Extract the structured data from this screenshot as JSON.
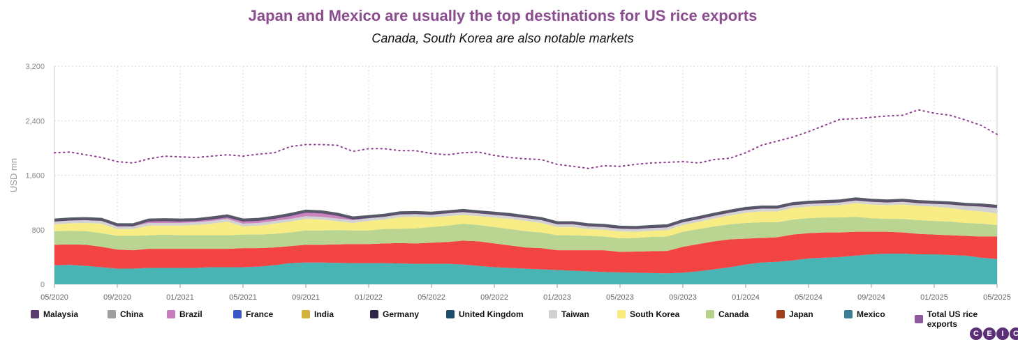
{
  "title": "Japan and Mexico are usually the top destinations for US rice exports",
  "subtitle": "Canada, South Korea are also notable markets",
  "logo": [
    "C",
    "E",
    "I",
    "C"
  ],
  "chart_data": {
    "type": "area",
    "stacked": true,
    "ylabel": "USD mn",
    "ylim": [
      0,
      3200
    ],
    "yticks": [
      0,
      800,
      1600,
      2400,
      3200
    ],
    "ytick_labels": [
      "0",
      "800",
      "1,600",
      "2,400",
      "3,200"
    ],
    "grid": true,
    "x": [
      "05/2020",
      "06/2020",
      "07/2020",
      "08/2020",
      "09/2020",
      "10/2020",
      "11/2020",
      "12/2020",
      "01/2021",
      "02/2021",
      "03/2021",
      "04/2021",
      "05/2021",
      "06/2021",
      "07/2021",
      "08/2021",
      "09/2021",
      "10/2021",
      "11/2021",
      "12/2021",
      "01/2022",
      "02/2022",
      "03/2022",
      "04/2022",
      "05/2022",
      "06/2022",
      "07/2022",
      "08/2022",
      "09/2022",
      "10/2022",
      "11/2022",
      "12/2022",
      "01/2023",
      "02/2023",
      "03/2023",
      "04/2023",
      "05/2023",
      "06/2023",
      "07/2023",
      "08/2023",
      "09/2023",
      "10/2023",
      "11/2023",
      "12/2023",
      "01/2024",
      "02/2024",
      "03/2024",
      "04/2024",
      "05/2024",
      "06/2024",
      "07/2024",
      "08/2024",
      "09/2024",
      "10/2024",
      "11/2024",
      "12/2024",
      "01/2025",
      "02/2025",
      "03/2025",
      "04/2025",
      "05/2025"
    ],
    "xtick_labels": [
      "05/2020",
      "09/2020",
      "01/2021",
      "05/2021",
      "09/2021",
      "01/2022",
      "05/2022",
      "09/2022",
      "01/2023",
      "05/2023",
      "09/2023",
      "01/2024",
      "05/2024",
      "09/2024",
      "01/2025",
      "05/2025"
    ],
    "legend_position": "bottom",
    "series": [
      {
        "name": "Mexico",
        "color": "#3fb0b0",
        "values": [
          280,
          285,
          270,
          250,
          230,
          230,
          240,
          240,
          240,
          240,
          250,
          250,
          250,
          260,
          280,
          310,
          320,
          320,
          315,
          310,
          310,
          310,
          305,
          300,
          300,
          300,
          290,
          270,
          250,
          240,
          230,
          220,
          210,
          200,
          190,
          180,
          175,
          170,
          165,
          160,
          170,
          190,
          220,
          250,
          290,
          320,
          330,
          350,
          380,
          390,
          400,
          420,
          440,
          450,
          450,
          440,
          440,
          430,
          420,
          390,
          370
        ]
      },
      {
        "name": "Japan",
        "color": "#f23a3a",
        "values": [
          300,
          300,
          310,
          300,
          280,
          270,
          280,
          280,
          280,
          280,
          270,
          270,
          280,
          270,
          260,
          250,
          260,
          260,
          270,
          280,
          280,
          290,
          300,
          300,
          310,
          320,
          350,
          360,
          350,
          330,
          310,
          310,
          290,
          300,
          310,
          320,
          300,
          310,
          320,
          330,
          380,
          400,
          410,
          410,
          380,
          360,
          360,
          380,
          370,
          370,
          360,
          350,
          330,
          320,
          310,
          300,
          290,
          290,
          290,
          310,
          330
        ]
      },
      {
        "name": "Canada",
        "color": "#b5d38b",
        "values": [
          200,
          200,
          200,
          200,
          200,
          210,
          200,
          210,
          200,
          200,
          200,
          200,
          200,
          200,
          200,
          200,
          210,
          210,
          210,
          200,
          200,
          210,
          210,
          220,
          230,
          240,
          250,
          240,
          240,
          240,
          240,
          230,
          220,
          220,
          210,
          200,
          200,
          200,
          210,
          210,
          220,
          220,
          220,
          220,
          230,
          230,
          220,
          220,
          220,
          220,
          220,
          220,
          200,
          190,
          200,
          200,
          200,
          200,
          190,
          190,
          170
        ]
      },
      {
        "name": "South Korea",
        "color": "#f7ec7d",
        "values": [
          100,
          110,
          120,
          140,
          100,
          100,
          140,
          130,
          140,
          150,
          170,
          200,
          120,
          130,
          150,
          160,
          170,
          160,
          130,
          110,
          140,
          140,
          170,
          170,
          140,
          140,
          130,
          130,
          140,
          150,
          150,
          140,
          120,
          120,
          100,
          100,
          100,
          90,
          90,
          95,
          100,
          105,
          115,
          130,
          150,
          160,
          160,
          170,
          170,
          170,
          180,
          200,
          200,
          200,
          210,
          210,
          210,
          200,
          190,
          180,
          170
        ]
      },
      {
        "name": "Taiwan",
        "color": "#d0d0d0",
        "values": [
          40,
          40,
          40,
          40,
          40,
          40,
          40,
          40,
          40,
          40,
          40,
          40,
          40,
          40,
          40,
          40,
          40,
          40,
          40,
          40,
          40,
          40,
          40,
          40,
          40,
          40,
          40,
          40,
          40,
          40,
          40,
          40,
          40,
          40,
          40,
          40,
          40,
          40,
          40,
          40,
          40,
          40,
          40,
          40,
          40,
          40,
          40,
          40,
          40,
          40,
          40,
          40,
          40,
          40,
          40,
          40,
          40,
          50,
          60,
          70,
          80
        ]
      },
      {
        "name": "Brazil",
        "color": "#c77dbd",
        "values": [
          0,
          0,
          0,
          0,
          0,
          0,
          20,
          25,
          20,
          15,
          20,
          20,
          30,
          30,
          30,
          40,
          50,
          50,
          40,
          10,
          0,
          0,
          0,
          0,
          0,
          0,
          0,
          0,
          0,
          0,
          0,
          0,
          0,
          0,
          0,
          0,
          0,
          0,
          0,
          0,
          0,
          0,
          0,
          0,
          0,
          0,
          0,
          0,
          0,
          0,
          0,
          0,
          0,
          0,
          0,
          0,
          0,
          0,
          0,
          0,
          0
        ]
      },
      {
        "name": "Malaysia",
        "color": "#5a3d6e",
        "values": [
          20,
          20,
          20,
          20,
          20,
          20,
          20,
          20,
          20,
          20,
          20,
          20,
          20,
          20,
          20,
          20,
          20,
          20,
          20,
          20,
          20,
          20,
          20,
          20,
          20,
          20,
          20,
          20,
          20,
          20,
          20,
          20,
          20,
          20,
          20,
          20,
          20,
          20,
          20,
          20,
          20,
          20,
          20,
          20,
          20,
          20,
          20,
          20,
          20,
          20,
          20,
          20,
          20,
          20,
          20,
          20,
          20,
          20,
          20,
          20,
          20
        ]
      },
      {
        "name": "China",
        "color": "#9e9e9e",
        "values": [
          10,
          10,
          10,
          10,
          10,
          10,
          10,
          10,
          10,
          10,
          10,
          10,
          10,
          10,
          10,
          10,
          10,
          10,
          10,
          10,
          10,
          10,
          10,
          10,
          10,
          10,
          10,
          10,
          10,
          10,
          10,
          10,
          10,
          10,
          10,
          10,
          10,
          10,
          10,
          10,
          10,
          10,
          10,
          10,
          10,
          10,
          10,
          10,
          10,
          10,
          10,
          10,
          10,
          10,
          10,
          10,
          10,
          10,
          10,
          10,
          10
        ]
      },
      {
        "name": "Germany",
        "color": "#2e2547",
        "values": [
          0,
          0,
          0,
          0,
          0,
          0,
          0,
          0,
          0,
          0,
          0,
          0,
          0,
          0,
          0,
          0,
          0,
          0,
          0,
          0,
          0,
          0,
          0,
          0,
          0,
          0,
          0,
          0,
          0,
          0,
          0,
          0,
          0,
          0,
          0,
          0,
          0,
          0,
          0,
          0,
          0,
          0,
          0,
          0,
          0,
          0,
          0,
          0,
          0,
          0,
          0,
          0,
          0,
          0,
          0,
          0,
          0,
          0,
          0,
          0,
          0
        ]
      },
      {
        "name": "United Kingdom",
        "color": "#1f4e6b",
        "values": [
          0,
          0,
          0,
          0,
          0,
          0,
          0,
          0,
          0,
          0,
          0,
          0,
          0,
          0,
          0,
          0,
          0,
          0,
          0,
          0,
          0,
          0,
          0,
          0,
          0,
          0,
          0,
          0,
          0,
          0,
          0,
          0,
          0,
          0,
          0,
          0,
          0,
          0,
          0,
          0,
          0,
          0,
          0,
          0,
          0,
          0,
          0,
          0,
          0,
          0,
          0,
          0,
          0,
          0,
          0,
          0,
          0,
          0,
          0,
          0,
          0
        ]
      },
      {
        "name": "India",
        "color": "#d4b23c",
        "values": [
          0,
          0,
          0,
          0,
          0,
          0,
          0,
          0,
          0,
          0,
          0,
          0,
          0,
          0,
          0,
          0,
          0,
          0,
          0,
          0,
          0,
          0,
          0,
          0,
          0,
          0,
          0,
          0,
          0,
          0,
          0,
          0,
          0,
          0,
          0,
          0,
          0,
          0,
          0,
          0,
          0,
          0,
          0,
          0,
          0,
          0,
          0,
          0,
          0,
          0,
          0,
          0,
          0,
          0,
          0,
          0,
          0,
          0,
          0,
          0,
          0
        ]
      },
      {
        "name": "France",
        "color": "#3a56c8",
        "values": [
          0,
          0,
          0,
          0,
          0,
          0,
          0,
          0,
          0,
          0,
          0,
          0,
          0,
          0,
          0,
          0,
          0,
          0,
          0,
          0,
          0,
          0,
          0,
          0,
          0,
          0,
          0,
          0,
          0,
          0,
          0,
          0,
          0,
          0,
          0,
          0,
          0,
          0,
          0,
          0,
          0,
          0,
          0,
          0,
          0,
          0,
          0,
          0,
          0,
          0,
          0,
          0,
          0,
          0,
          0,
          0,
          0,
          0,
          0,
          0,
          0
        ]
      }
    ],
    "total": {
      "name": "Total US rice exports",
      "color": "#8e3a8e",
      "values": [
        1930,
        1940,
        1900,
        1860,
        1800,
        1780,
        1840,
        1880,
        1870,
        1860,
        1880,
        1900,
        1880,
        1910,
        1930,
        2020,
        2050,
        2050,
        2040,
        1950,
        1990,
        1990,
        1960,
        1960,
        1920,
        1900,
        1930,
        1940,
        1890,
        1860,
        1840,
        1830,
        1760,
        1730,
        1700,
        1740,
        1730,
        1760,
        1780,
        1790,
        1800,
        1780,
        1830,
        1850,
        1930,
        2040,
        2100,
        2160,
        2240,
        2330,
        2420,
        2430,
        2450,
        2470,
        2480,
        2560,
        2510,
        2480,
        2410,
        2330,
        2200
      ]
    },
    "legend": [
      {
        "name": "Malaysia",
        "color": "#5a3d6e"
      },
      {
        "name": "China",
        "color": "#9e9e9e"
      },
      {
        "name": "Brazil",
        "color": "#c77dbd"
      },
      {
        "name": "France",
        "color": "#3a56c8"
      },
      {
        "name": "India",
        "color": "#d4b23c"
      },
      {
        "name": "Germany",
        "color": "#2e2547"
      },
      {
        "name": "United Kingdom",
        "color": "#1f4e6b"
      },
      {
        "name": "Taiwan",
        "color": "#d0d0d0"
      },
      {
        "name": "South Korea",
        "color": "#f7ec7d"
      },
      {
        "name": "Canada",
        "color": "#b5d38b"
      },
      {
        "name": "Japan",
        "color": "#a0401a"
      },
      {
        "name": "Mexico",
        "color": "#3a7f93"
      },
      {
        "name": "Total US rice exports",
        "color": "#8e5a9e"
      }
    ]
  }
}
